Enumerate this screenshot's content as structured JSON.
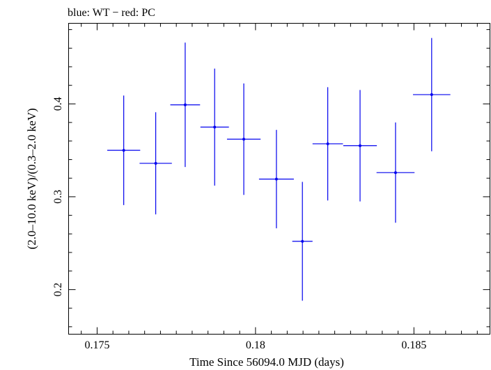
{
  "chart_data": {
    "type": "scatter",
    "title": "blue: WT − red: PC",
    "xlabel": "Time Since 56094.0 MJD (days)",
    "ylabel": "(2.0–10.0 keV)/(0.3–2.0 keV)",
    "xlim": [
      0.1741,
      0.1874
    ],
    "ylim": [
      0.152,
      0.4868
    ],
    "x_ticks": [
      {
        "value": 0.175,
        "label": "0.175"
      },
      {
        "value": 0.18,
        "label": "0.18"
      },
      {
        "value": 0.185,
        "label": "0.185"
      }
    ],
    "y_ticks": [
      {
        "value": 0.2,
        "label": "0.2"
      },
      {
        "value": 0.3,
        "label": "0.3"
      },
      {
        "value": 0.4,
        "label": "0.4"
      }
    ],
    "series": [
      {
        "color": "#0000ee",
        "points": [
          {
            "x": 0.17584,
            "xerr": 0.00052,
            "y": 0.35,
            "yerr": 0.059
          },
          {
            "x": 0.17685,
            "xerr": 0.00051,
            "y": 0.336,
            "yerr": 0.055
          },
          {
            "x": 0.17778,
            "xerr": 0.00047,
            "y": 0.399,
            "yerr": 0.067
          },
          {
            "x": 0.17871,
            "xerr": 0.00045,
            "y": 0.375,
            "yerr": 0.063
          },
          {
            "x": 0.17963,
            "xerr": 0.00053,
            "y": 0.362,
            "yerr": 0.06
          },
          {
            "x": 0.18066,
            "xerr": 0.00055,
            "y": 0.319,
            "yerr": 0.053
          },
          {
            "x": 0.18148,
            "xerr": 0.00032,
            "y": 0.252,
            "yerr": 0.064
          },
          {
            "x": 0.18228,
            "xerr": 0.00048,
            "y": 0.357,
            "yerr": 0.061
          },
          {
            "x": 0.1833,
            "xerr": 0.00053,
            "y": 0.355,
            "yerr": 0.06
          },
          {
            "x": 0.18442,
            "xerr": 0.0006,
            "y": 0.326,
            "yerr": 0.054
          },
          {
            "x": 0.18556,
            "xerr": 0.00059,
            "y": 0.41,
            "yerr": 0.061
          }
        ]
      }
    ]
  }
}
